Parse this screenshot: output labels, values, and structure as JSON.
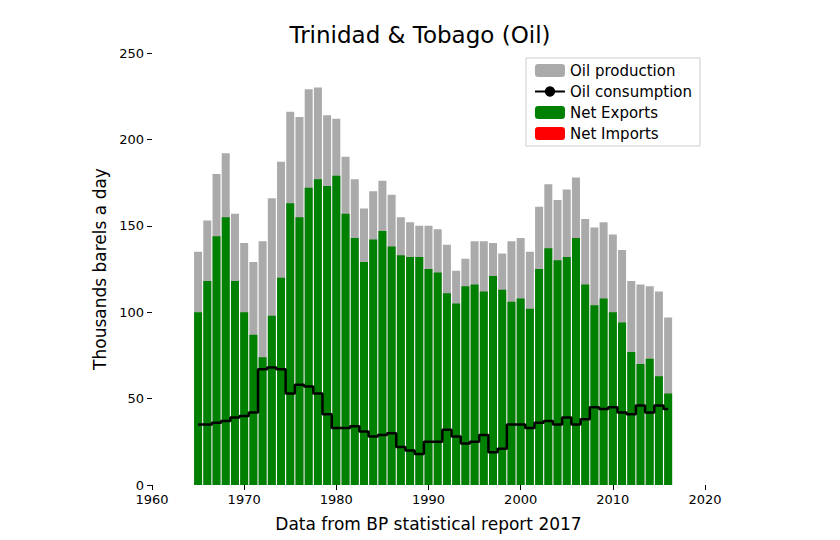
{
  "chart_data": {
    "type": "bar",
    "title": "Trinidad & Tobago (Oil)",
    "x_label": "Data from BP statistical report 2017",
    "y_label": "Thousands barels a day",
    "x": [
      1965,
      1966,
      1967,
      1968,
      1969,
      1970,
      1971,
      1972,
      1973,
      1974,
      1975,
      1976,
      1977,
      1978,
      1979,
      1980,
      1981,
      1982,
      1983,
      1984,
      1985,
      1986,
      1987,
      1988,
      1989,
      1990,
      1991,
      1992,
      1993,
      1994,
      1995,
      1996,
      1997,
      1998,
      1999,
      2000,
      2001,
      2002,
      2003,
      2004,
      2005,
      2006,
      2007,
      2008,
      2009,
      2010,
      2011,
      2012,
      2013,
      2014,
      2015,
      2016
    ],
    "series": [
      {
        "name": "Oil production",
        "type": "bar",
        "color": "#aaaaaa",
        "values": [
          135,
          153,
          180,
          192,
          157,
          140,
          129,
          141,
          166,
          187,
          216,
          213,
          229,
          230,
          214,
          212,
          190,
          177,
          160,
          170,
          176,
          168,
          155,
          152,
          150,
          150,
          148,
          139,
          124,
          131,
          141,
          141,
          140,
          134,
          141,
          143,
          135,
          161,
          174,
          165,
          171,
          178,
          154,
          149,
          152,
          145,
          136,
          118,
          116,
          115,
          112,
          97
        ]
      },
      {
        "name": "Oil consumption",
        "type": "line",
        "color": "#000000",
        "values": [
          35,
          35,
          36,
          37,
          39,
          40,
          42,
          67,
          68,
          67,
          53,
          58,
          57,
          53,
          41,
          33,
          33,
          34,
          31,
          28,
          29,
          30,
          22,
          20,
          18,
          25,
          25,
          32,
          28,
          24,
          25,
          29,
          19,
          21,
          35,
          35,
          33,
          36,
          37,
          35,
          39,
          35,
          38,
          45,
          44,
          45,
          42,
          41,
          46,
          42,
          46,
          44
        ]
      },
      {
        "name": "Net Exports",
        "type": "bar",
        "color": "#008000",
        "values": [
          100,
          118,
          144,
          155,
          118,
          100,
          87,
          74,
          98,
          120,
          163,
          155,
          172,
          177,
          173,
          179,
          157,
          143,
          129,
          142,
          147,
          138,
          133,
          132,
          132,
          125,
          123,
          111,
          105,
          115,
          116,
          112,
          121,
          113,
          106,
          108,
          102,
          125,
          137,
          130,
          132,
          143,
          116,
          104,
          108,
          100,
          94,
          77,
          70,
          73,
          63,
          53
        ]
      },
      {
        "name": "Net Imports",
        "type": "bar",
        "color": "#ff0000",
        "values": [
          0,
          0,
          0,
          0,
          0,
          0,
          0,
          0,
          0,
          0,
          0,
          0,
          0,
          0,
          0,
          0,
          0,
          0,
          0,
          0,
          0,
          0,
          0,
          0,
          0,
          0,
          0,
          0,
          0,
          0,
          0,
          0,
          0,
          0,
          0,
          0,
          0,
          0,
          0,
          0,
          0,
          0,
          0,
          0,
          0,
          0,
          0,
          0,
          0,
          0,
          0,
          0
        ]
      }
    ],
    "xlim": [
      1960,
      2020
    ],
    "xticks": [
      1960,
      1970,
      1980,
      1990,
      2000,
      2010,
      2020
    ],
    "ylim": [
      0,
      250
    ],
    "yticks": [
      0,
      50,
      100,
      150,
      200,
      250
    ],
    "grid": false,
    "legend": "upper right"
  }
}
